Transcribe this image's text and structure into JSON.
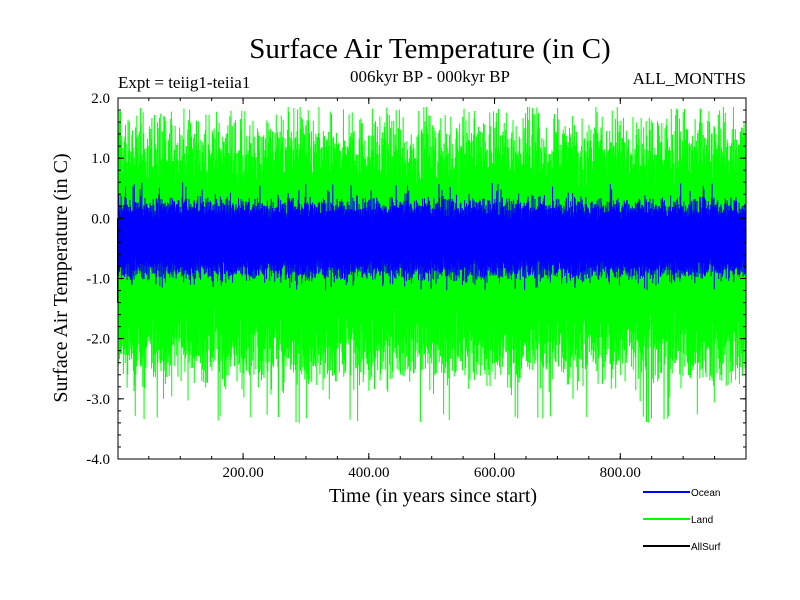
{
  "chart_data": {
    "type": "line",
    "title": "Surface Air Temperature (in C)",
    "subtitle_left": "Expt = teiig1-teiia1",
    "subtitle_center": "006kyr BP - 000kyr BP",
    "subtitle_right": "ALL_MONTHS",
    "xlabel": "Time (in years since start)",
    "ylabel": "Surface Air Temperature (in C)",
    "xlim": [
      1,
      1000
    ],
    "ylim": [
      -4.0,
      2.0
    ],
    "x_ticks": [
      {
        "value": 200,
        "label": "200.00"
      },
      {
        "value": 400,
        "label": "400.00"
      },
      {
        "value": 600,
        "label": "600.00"
      },
      {
        "value": 800,
        "label": "800.00"
      }
    ],
    "y_ticks": [
      {
        "value": 2.0,
        "label": "2.0"
      },
      {
        "value": 1.0,
        "label": "1.0"
      },
      {
        "value": 0.0,
        "label": "0.0"
      },
      {
        "value": -1.0,
        "label": "-1.0"
      },
      {
        "value": -2.0,
        "label": "-2.0"
      },
      {
        "value": -3.0,
        "label": "-3.0"
      },
      {
        "value": -4.0,
        "label": "-4.0"
      }
    ],
    "grid": false,
    "legend_position": "bottom-right",
    "series": [
      {
        "name": "Land",
        "color": "#00ff00",
        "x_start": 1,
        "x_end": 1000,
        "mean": -0.55,
        "envelope_min": -3.4,
        "envelope_max": 1.85,
        "typical_min": -2.3,
        "typical_max": 1.2
      },
      {
        "name": "Ocean",
        "color": "#0000ff",
        "x_start": 1,
        "x_end": 1000,
        "mean": -0.35,
        "envelope_min": -1.2,
        "envelope_max": 0.6,
        "typical_min": -0.9,
        "typical_max": 0.2
      },
      {
        "name": "AllSurf",
        "color": "#000000",
        "x_start": 1,
        "x_end": 1000,
        "mean": -0.4
      }
    ]
  }
}
